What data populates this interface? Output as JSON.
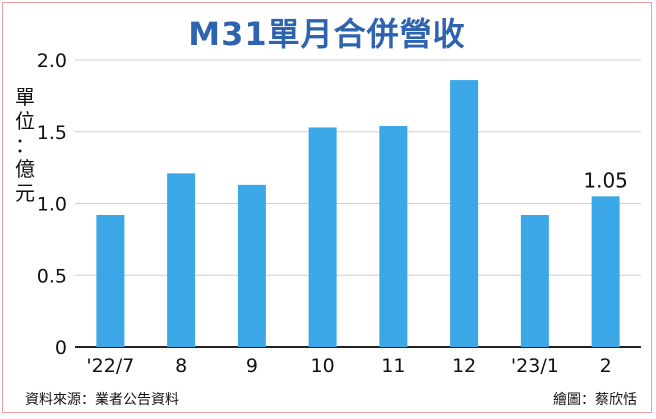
{
  "title": "M31單月合併營收",
  "footer": {
    "source": "資料來源：業者公告資料",
    "credit": "繪圖：蔡欣恬"
  },
  "colors": {
    "bar": "#3ca7e6",
    "title": "#2e63b0",
    "axis": "#222222",
    "grid": "#cfcfcf"
  },
  "chart_data": {
    "type": "bar",
    "title": "M31單月合併營收",
    "ylabel": "單位：億元",
    "xlabel": "",
    "ylim": [
      0,
      2.0
    ],
    "yticks": [
      "0",
      "0.5",
      "1.0",
      "1.5",
      "2.0"
    ],
    "grid": true,
    "categories": [
      "'22/7",
      "8",
      "9",
      "10",
      "11",
      "12",
      "'23/1",
      "2"
    ],
    "values": [
      0.92,
      1.21,
      1.13,
      1.53,
      1.54,
      1.86,
      0.92,
      1.05
    ],
    "data_labels": [
      {
        "category": "2",
        "text": "1.05"
      }
    ]
  }
}
